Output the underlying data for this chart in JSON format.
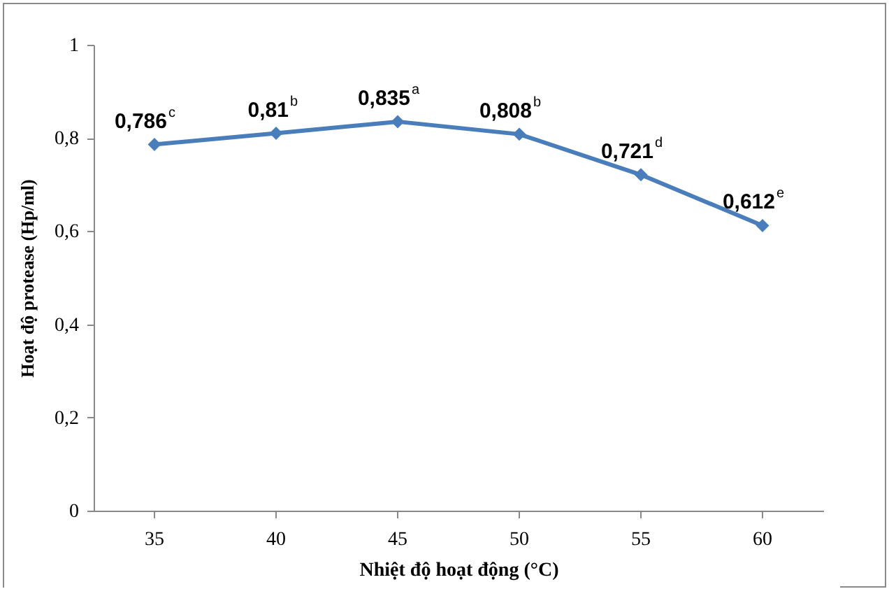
{
  "chart_data": {
    "type": "line",
    "xlabel": "Nhiệt độ hoạt động (°C)",
    "ylabel": "Hoạt độ protease (Hp/ml)",
    "categories": [
      "35",
      "40",
      "45",
      "50",
      "55",
      "60"
    ],
    "series": [
      {
        "color": "#4a7ebb",
        "values": [
          0.786,
          0.81,
          0.835,
          0.808,
          0.721,
          0.612
        ],
        "value_labels": [
          "0,786$^{c}$",
          "0,81$^{b}$",
          "0,835$^{a}$",
          "0,808$^{b}$",
          "0,721$^{d}$",
          "0,612$^{e}$"
        ]
      }
    ],
    "ylim": [
      0,
      1
    ],
    "yticks": [
      {
        "value": 0,
        "label": "0"
      },
      {
        "value": 0.2,
        "label": "0,2"
      },
      {
        "value": 0.4,
        "label": "0,4"
      },
      {
        "value": 0.6,
        "label": "0,6"
      },
      {
        "value": 0.8,
        "label": "0,8"
      },
      {
        "value": 1,
        "label": "1"
      }
    ],
    "grid": false,
    "marker": "diamond",
    "line_style": "solid"
  }
}
